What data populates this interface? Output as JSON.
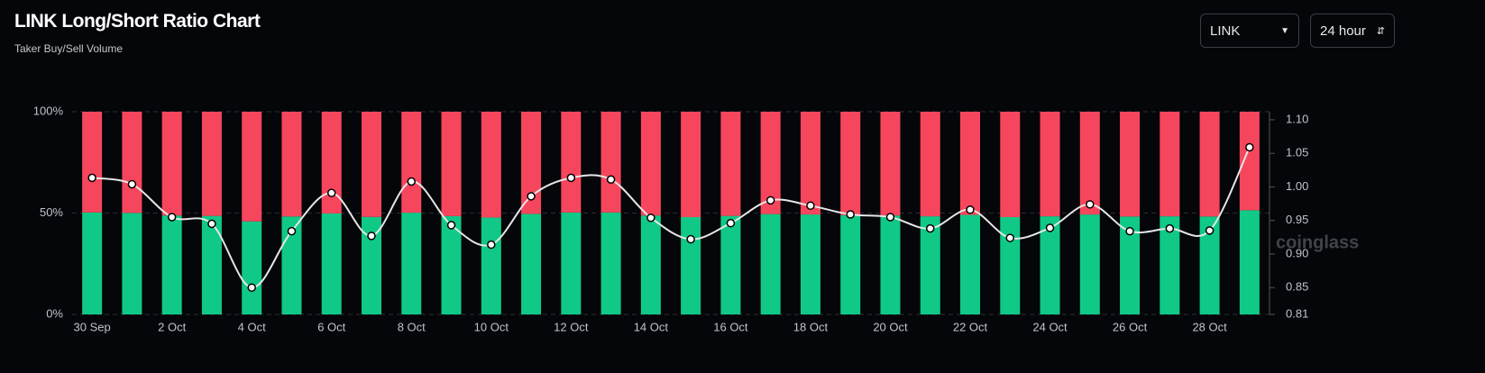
{
  "controls": {
    "symbol": "LINK",
    "interval": "24 hour"
  },
  "chart_data": {
    "type": "bar",
    "title": "LINK Long/Short Ratio Chart",
    "subtitle": "Taker Buy/Sell Volume",
    "watermark": "coinglass",
    "categories": [
      "30 Sep",
      null,
      "2 Oct",
      null,
      "4 Oct",
      null,
      "6 Oct",
      null,
      "8 Oct",
      null,
      "10 Oct",
      null,
      "12 Oct",
      null,
      "14 Oct",
      null,
      "16 Oct",
      null,
      "18 Oct",
      null,
      "20 Oct",
      null,
      "22 Oct",
      null,
      "24 Oct",
      null,
      "26 Oct",
      null,
      "28 Oct",
      null
    ],
    "stacked": true,
    "series": [
      {
        "color": "#10c986",
        "values": [
          50.3,
          50.1,
          48.8,
          48.6,
          45.9,
          48.3,
          49.8,
          48.1,
          50.2,
          48.5,
          47.8,
          49.6,
          50.3,
          50.3,
          48.8,
          48.0,
          48.6,
          49.5,
          49.3,
          49.0,
          48.8,
          48.4,
          49.1,
          48.0,
          48.4,
          49.3,
          48.3,
          48.4,
          48.3,
          51.4
        ]
      },
      {
        "color": "#f6465d",
        "values": [
          49.7,
          49.9,
          51.2,
          51.4,
          54.1,
          51.7,
          50.2,
          51.9,
          49.8,
          51.5,
          52.2,
          50.4,
          49.7,
          49.7,
          51.2,
          52.0,
          51.4,
          50.5,
          50.7,
          51.0,
          51.2,
          51.6,
          50.9,
          52.0,
          51.6,
          50.7,
          51.7,
          51.6,
          51.7,
          48.6
        ]
      },
      {
        "type": "line",
        "axis": "y2",
        "color": "#e6e6e6",
        "values": [
          1.0135,
          1.004,
          0.955,
          0.945,
          0.85,
          0.934,
          0.991,
          0.927,
          1.008,
          0.943,
          0.914,
          0.986,
          1.0135,
          1.011,
          0.954,
          0.922,
          0.946,
          0.98,
          0.972,
          0.959,
          0.955,
          0.938,
          0.966,
          0.924,
          0.939,
          0.974,
          0.934,
          0.938,
          0.935,
          1.059
        ]
      }
    ],
    "ylim": [
      0,
      100
    ],
    "yticks": [
      {
        "value": 0,
        "label": "0%"
      },
      {
        "value": 50,
        "label": "50%"
      },
      {
        "value": 100,
        "label": "100%"
      }
    ],
    "y2lim": [
      0.81,
      1.112
    ],
    "y2ticks": [
      0.81,
      0.85,
      {
        "value": 0.9,
        "label": "0.90"
      },
      0.95,
      {
        "value": 1.0,
        "label": "1.00"
      },
      1.05,
      {
        "value": 1.1,
        "label": "1.10"
      }
    ],
    "grid": true
  }
}
